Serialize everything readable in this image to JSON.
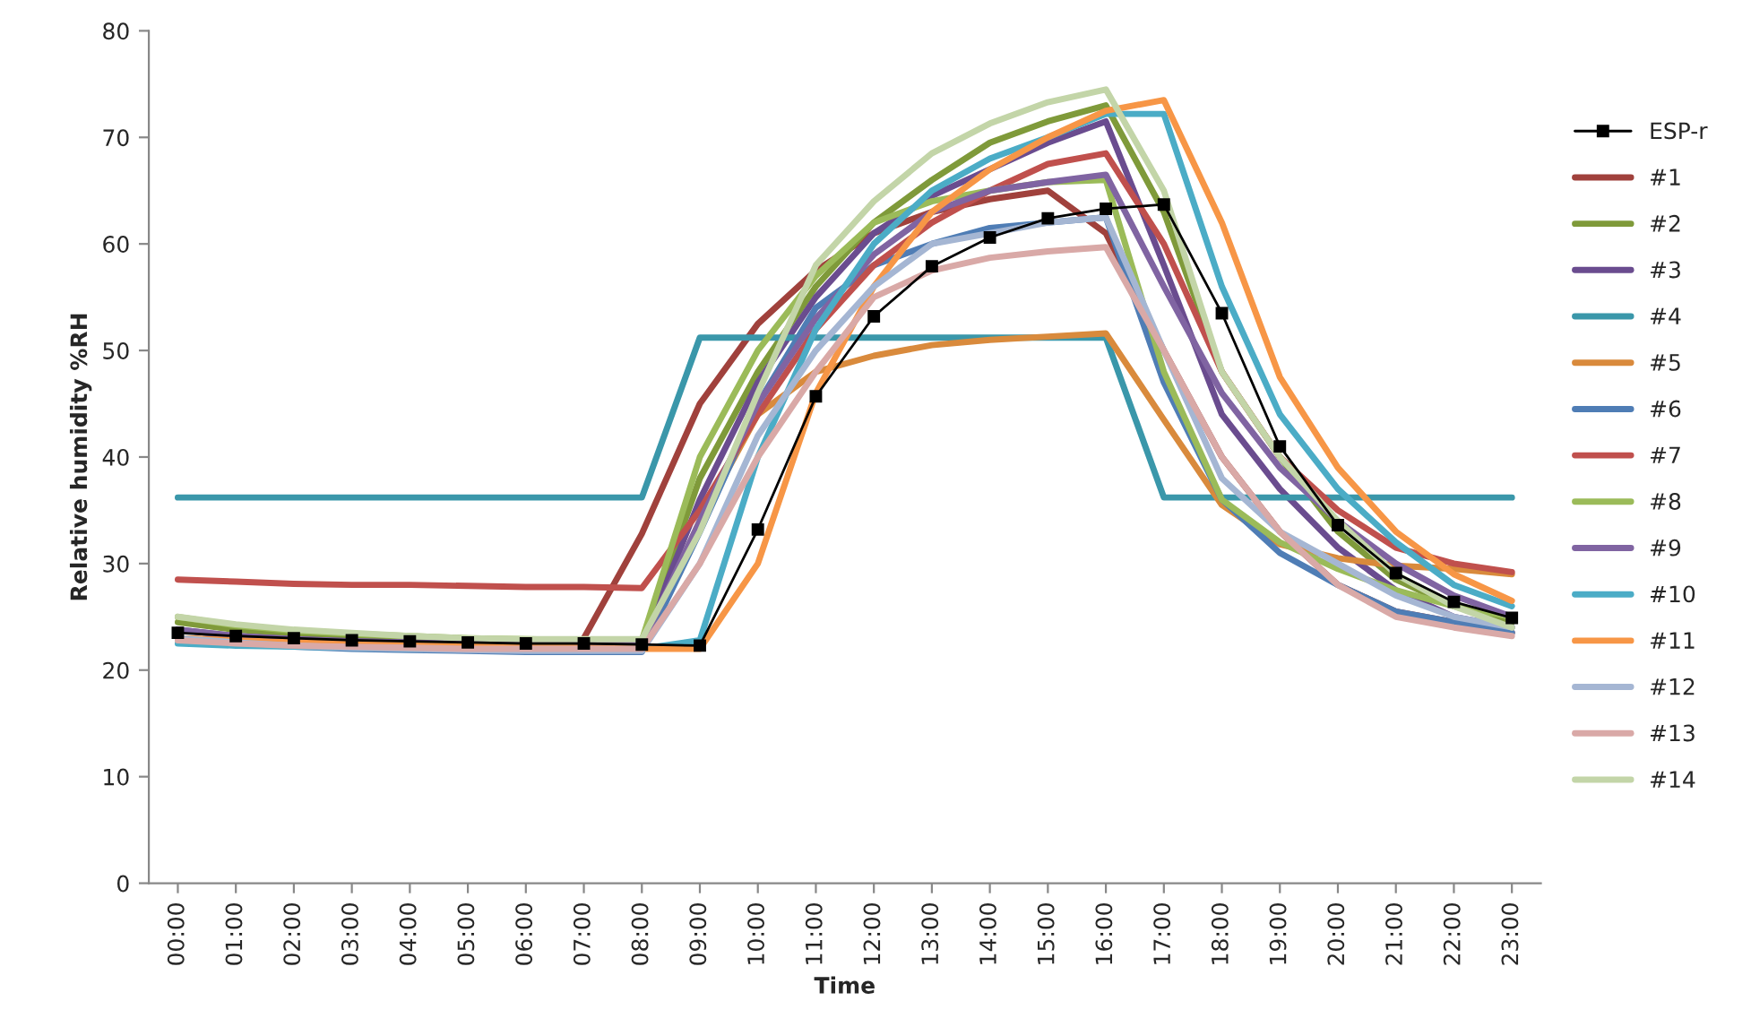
{
  "chart_data": {
    "type": "line",
    "xlabel": "Time",
    "ylabel": "Relative humidity %RH",
    "categories": [
      "00:00",
      "01:00",
      "02:00",
      "03:00",
      "04:00",
      "05:00",
      "06:00",
      "07:00",
      "08:00",
      "09:00",
      "10:00",
      "11:00",
      "12:00",
      "13:00",
      "14:00",
      "15:00",
      "16:00",
      "17:00",
      "18:00",
      "19:00",
      "20:00",
      "21:00",
      "22:00",
      "23:00"
    ],
    "ylim": [
      0,
      80
    ],
    "yticks": [
      0,
      10,
      20,
      30,
      40,
      50,
      60,
      70,
      80
    ],
    "grid": false,
    "legend": "right",
    "line_style": "solid",
    "series": [
      {
        "name": "ESP-r",
        "color": "#000000",
        "marker": "square",
        "values": [
          23.5,
          23.2,
          23,
          22.8,
          22.7,
          22.6,
          22.5,
          22.5,
          22.4,
          22.3,
          33.2,
          45.7,
          53.2,
          57.9,
          60.6,
          62.4,
          63.3,
          63.7,
          53.5,
          41,
          33.6,
          29.1,
          26.4,
          24.9
        ]
      },
      {
        "name": "#1",
        "color": "#a0413c",
        "values": [
          null,
          null,
          null,
          null,
          null,
          null,
          null,
          23,
          32.8,
          45,
          52.5,
          57.5,
          61,
          63,
          64.2,
          65,
          61,
          50,
          40,
          33,
          28,
          25.5,
          24.5,
          23.5
        ]
      },
      {
        "name": "#2",
        "color": "#7f9a3a",
        "values": [
          24.5,
          23.8,
          23.4,
          23.1,
          22.9,
          22.8,
          22.7,
          22.7,
          22.7,
          38,
          48,
          56,
          62,
          66,
          69.5,
          71.5,
          73,
          63,
          48,
          40,
          33,
          28.5,
          26,
          24.5
        ]
      },
      {
        "name": "#3",
        "color": "#6a4c8f",
        "values": [
          23.8,
          23.2,
          22.9,
          22.7,
          22.6,
          22.5,
          22.4,
          22.4,
          22.4,
          36,
          47,
          55,
          61,
          64.5,
          67,
          69.5,
          71.5,
          58,
          44,
          37,
          31.5,
          27.5,
          25,
          24
        ]
      },
      {
        "name": "#4",
        "color": "#3a97aa",
        "values": [
          36.2,
          36.2,
          36.2,
          36.2,
          36.2,
          36.2,
          36.2,
          36.2,
          36.2,
          51.2,
          51.2,
          51.2,
          51.2,
          51.2,
          51.2,
          51.2,
          51.2,
          36.2,
          36.2,
          36.2,
          36.2,
          36.2,
          36.2,
          36.2
        ]
      },
      {
        "name": "#5",
        "color": "#d98a3c",
        "values": [
          23,
          22.8,
          22.6,
          22.5,
          22.4,
          22.3,
          22.2,
          22.1,
          22,
          34,
          44,
          48,
          49.5,
          50.5,
          51,
          51.3,
          51.6,
          43.5,
          35.5,
          31.8,
          30.5,
          29.8,
          29.5,
          29
        ]
      },
      {
        "name": "#6",
        "color": "#4f7db5",
        "values": [
          23,
          22.5,
          22.2,
          22,
          21.9,
          21.8,
          21.7,
          21.7,
          21.7,
          33,
          45,
          54,
          58,
          60,
          61.5,
          62,
          62.5,
          47,
          36,
          31,
          28,
          25.5,
          24.5,
          23.5
        ]
      },
      {
        "name": "#7",
        "color": "#c0504d",
        "values": [
          28.5,
          28.3,
          28.1,
          28,
          28,
          27.9,
          27.8,
          27.8,
          27.7,
          35,
          44,
          52,
          58,
          62,
          65,
          67.5,
          68.5,
          60,
          48,
          40,
          35,
          31.5,
          30,
          29.2
        ]
      },
      {
        "name": "#8",
        "color": "#9bbb59",
        "values": [
          25,
          24.2,
          23.7,
          23.4,
          23.2,
          23,
          22.9,
          22.8,
          22.8,
          40,
          50,
          57,
          62,
          64,
          65,
          65.8,
          66,
          48,
          36,
          32,
          29.5,
          27.5,
          26,
          25
        ]
      },
      {
        "name": "#9",
        "color": "#8064a2",
        "values": [
          23.8,
          23.2,
          22.9,
          22.7,
          22.6,
          22.5,
          22.4,
          22.4,
          22.4,
          34,
          45,
          53,
          59,
          63,
          65,
          65.8,
          66.5,
          56,
          46,
          39,
          34,
          30,
          27,
          25
        ]
      },
      {
        "name": "#10",
        "color": "#4bacc6",
        "values": [
          22.5,
          22.3,
          22.2,
          22.1,
          22,
          22,
          22,
          22,
          22,
          22.8,
          40,
          52,
          60,
          65,
          68,
          70,
          72.2,
          72.2,
          56,
          44,
          37,
          32,
          28,
          26
        ]
      },
      {
        "name": "#11",
        "color": "#f79646",
        "values": [
          23,
          22.8,
          22.6,
          22.5,
          22.4,
          22.3,
          22.2,
          22.1,
          22,
          22,
          30,
          46,
          56,
          63,
          67,
          70,
          72.5,
          73.5,
          62,
          47.5,
          39,
          33,
          29,
          26.5
        ]
      },
      {
        "name": "#12",
        "color": "#a5b6d3",
        "values": [
          23,
          22.6,
          22.3,
          22.1,
          22,
          21.9,
          21.8,
          21.8,
          21.8,
          30,
          42,
          50,
          56,
          60,
          61,
          62,
          62.5,
          50,
          38,
          33,
          30,
          27,
          25,
          24
        ]
      },
      {
        "name": "#13",
        "color": "#d9a9a7",
        "values": [
          22.8,
          22.5,
          22.3,
          22.2,
          22.1,
          22,
          22,
          22,
          22,
          30,
          40,
          48,
          55,
          57.5,
          58.7,
          59.3,
          59.7,
          50,
          40,
          33,
          28,
          25,
          24,
          23.2
        ]
      },
      {
        "name": "#14",
        "color": "#c3d5a8",
        "values": [
          25,
          24.3,
          23.8,
          23.5,
          23.2,
          23,
          22.9,
          22.9,
          22.9,
          33,
          46,
          58,
          64,
          68.5,
          71.3,
          73.3,
          74.5,
          65,
          48,
          40,
          34,
          29,
          26,
          24
        ]
      }
    ]
  }
}
